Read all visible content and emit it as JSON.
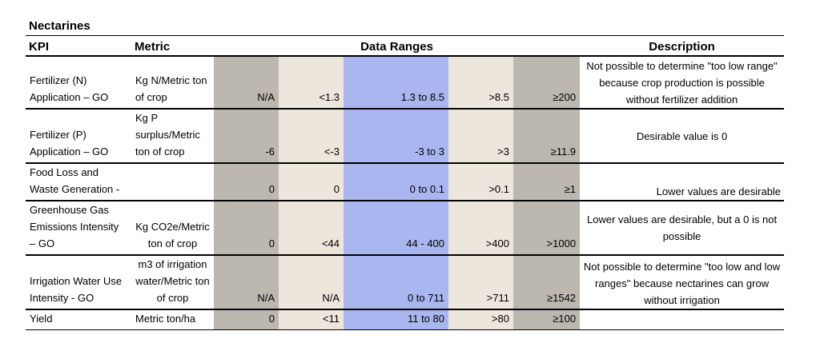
{
  "title": "Nectarines",
  "headers": {
    "kpi": "KPI",
    "metric": "Metric",
    "ranges": "Data Ranges",
    "description": "Description"
  },
  "colors": {
    "dark_gray": "#bcb8b0",
    "beige": "#ede6dd",
    "blue": "#a9b6ef"
  },
  "rows": [
    {
      "kpi": "Fertilizer (N) Application – GO",
      "metric": "Kg N/Metric ton of crop",
      "ranges": [
        "N/A",
        "<1.3",
        "1.3 to 8.5",
        ">8.5",
        "≥200"
      ],
      "description": "Not possible to determine \"too low range\" because crop production is possible without fertilizer addition"
    },
    {
      "kpi": "Fertilizer (P) Application – GO",
      "metric": "Kg P surplus/Metric ton of crop",
      "ranges": [
        "-6",
        "<-3",
        "-3 to 3",
        ">3",
        "≥11.9"
      ],
      "description": "Desirable value is 0"
    },
    {
      "kpi": "Food Loss and Waste Generation -",
      "metric": "",
      "ranges": [
        "0",
        "0",
        "0 to 0.1",
        ">0.1",
        "≥1"
      ],
      "description": "Lower values are desirable"
    },
    {
      "kpi": "Greenhouse Gas Emissions Intensity – GO",
      "metric": "Kg CO2e/Metric ton of crop",
      "ranges": [
        "0",
        "<44",
        "44 - 400",
        ">400",
        ">1000"
      ],
      "description": "Lower values are desirable, but a 0 is not possible"
    },
    {
      "kpi": "Irrigation Water Use Intensity - GO",
      "metric": "m3 of irrigation water/Metric ton of crop",
      "ranges": [
        "N/A",
        "N/A",
        "0 to 711",
        ">711",
        "≥1542"
      ],
      "description": "Not possible to determine \"too low and low ranges\" because nectarines can grow without irrigation"
    },
    {
      "kpi": "Yield",
      "metric": "Metric ton/ha",
      "ranges": [
        "0",
        "<11",
        "11  to 80",
        ">80",
        "≥100"
      ],
      "description": ""
    }
  ]
}
